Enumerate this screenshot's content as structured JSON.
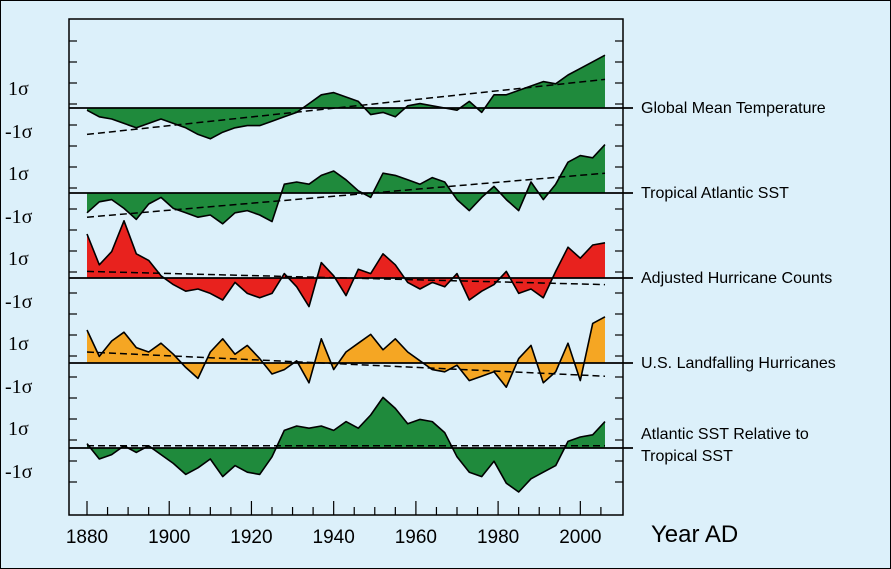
{
  "chart_data": {
    "type": "area",
    "xlabel": "Year AD",
    "xlim": [
      1880,
      2006
    ],
    "x_ticks": [
      1880,
      1900,
      1920,
      1940,
      1960,
      1980,
      2000
    ],
    "y_tick_labels": [
      "1σ",
      "-1σ"
    ],
    "grid": false,
    "colors": {
      "background": "#dcf0fa",
      "green": "#1f8a3c",
      "red": "#e8221e",
      "orange": "#f5a623"
    },
    "series": [
      {
        "name": "Global Mean Temperature",
        "label_lines": [
          "Global Mean Temperature"
        ],
        "fill": "green",
        "x": [
          1880,
          1883,
          1886,
          1889,
          1892,
          1895,
          1898,
          1901,
          1904,
          1907,
          1910,
          1913,
          1916,
          1919,
          1922,
          1925,
          1928,
          1931,
          1934,
          1937,
          1940,
          1943,
          1946,
          1949,
          1952,
          1955,
          1958,
          1961,
          1964,
          1967,
          1970,
          1973,
          1976,
          1979,
          1982,
          1985,
          1988,
          1991,
          1994,
          1997,
          2000,
          2003,
          2006
        ],
        "values": [
          -0.1,
          -0.4,
          -0.5,
          -0.7,
          -0.9,
          -0.7,
          -0.5,
          -0.7,
          -0.9,
          -1.2,
          -1.4,
          -1.1,
          -0.9,
          -0.8,
          -0.8,
          -0.6,
          -0.4,
          -0.2,
          0.2,
          0.6,
          0.7,
          0.5,
          0.3,
          -0.3,
          -0.2,
          -0.4,
          0.1,
          0.2,
          0.1,
          0.0,
          -0.1,
          0.3,
          -0.2,
          0.6,
          0.6,
          0.8,
          1.0,
          1.2,
          1.1,
          1.5,
          1.8,
          2.1,
          2.4
        ],
        "trend": [
          -1.2,
          1.3
        ]
      },
      {
        "name": "Tropical Atlantic SST",
        "label_lines": [
          "Tropical Atlantic SST"
        ],
        "fill": "green",
        "x": [
          1880,
          1883,
          1886,
          1889,
          1892,
          1895,
          1898,
          1901,
          1904,
          1907,
          1910,
          1913,
          1916,
          1919,
          1922,
          1925,
          1928,
          1931,
          1934,
          1937,
          1940,
          1943,
          1946,
          1949,
          1952,
          1955,
          1958,
          1961,
          1964,
          1967,
          1970,
          1973,
          1976,
          1979,
          1982,
          1985,
          1988,
          1991,
          1994,
          1997,
          2000,
          2003,
          2006
        ],
        "values": [
          -0.9,
          -0.4,
          -0.3,
          -0.7,
          -1.2,
          -0.5,
          -0.2,
          -0.7,
          -0.9,
          -1.1,
          -1.0,
          -1.4,
          -0.9,
          -0.8,
          -1.0,
          -1.3,
          0.4,
          0.5,
          0.4,
          0.8,
          1.0,
          0.6,
          0.1,
          -0.2,
          0.9,
          0.8,
          0.6,
          0.4,
          0.7,
          0.5,
          -0.3,
          -0.8,
          -0.2,
          0.3,
          -0.3,
          -0.8,
          0.5,
          -0.3,
          0.4,
          1.4,
          1.7,
          1.6,
          2.2
        ],
        "trend": [
          -1.1,
          0.9
        ]
      },
      {
        "name": "Adjusted Hurricane Counts",
        "label_lines": [
          "Adjusted Hurricane Counts"
        ],
        "fill": "red",
        "x": [
          1880,
          1883,
          1886,
          1889,
          1892,
          1895,
          1898,
          1901,
          1904,
          1907,
          1910,
          1913,
          1916,
          1919,
          1922,
          1925,
          1928,
          1931,
          1934,
          1937,
          1940,
          1943,
          1946,
          1949,
          1952,
          1955,
          1958,
          1961,
          1964,
          1967,
          1970,
          1973,
          1976,
          1979,
          1982,
          1985,
          1988,
          1991,
          1994,
          1997,
          2000,
          2003,
          2006
        ],
        "values": [
          2.0,
          0.6,
          1.2,
          2.6,
          1.1,
          0.8,
          0.1,
          -0.3,
          -0.6,
          -0.5,
          -0.7,
          -1.0,
          -0.2,
          -0.7,
          -0.9,
          -0.7,
          0.2,
          -0.4,
          -1.3,
          0.7,
          0.1,
          -0.8,
          0.4,
          0.2,
          1.1,
          0.6,
          -0.2,
          -0.5,
          -0.2,
          -0.4,
          0.2,
          -1.0,
          -0.6,
          -0.3,
          0.3,
          -0.7,
          -0.5,
          -0.9,
          0.3,
          1.4,
          0.9,
          1.5,
          1.6
        ],
        "trend": [
          0.3,
          -0.3
        ]
      },
      {
        "name": "U.S. Landfalling Hurricanes",
        "label_lines": [
          "U.S. Landfalling Hurricanes"
        ],
        "fill": "orange",
        "x": [
          1880,
          1883,
          1886,
          1889,
          1892,
          1895,
          1898,
          1901,
          1904,
          1907,
          1910,
          1913,
          1916,
          1919,
          1922,
          1925,
          1928,
          1931,
          1934,
          1937,
          1940,
          1943,
          1946,
          1949,
          1952,
          1955,
          1958,
          1961,
          1964,
          1967,
          1970,
          1973,
          1976,
          1979,
          1982,
          1985,
          1988,
          1991,
          1994,
          1997,
          2000,
          2003,
          2006
        ],
        "values": [
          1.5,
          0.3,
          1.0,
          1.4,
          0.7,
          0.5,
          0.9,
          0.4,
          -0.2,
          -0.7,
          0.5,
          1.1,
          0.4,
          0.8,
          0.2,
          -0.5,
          -0.3,
          0.1,
          -0.9,
          1.1,
          -0.3,
          0.5,
          0.9,
          1.3,
          0.6,
          1.1,
          0.5,
          0.1,
          -0.3,
          -0.4,
          -0.1,
          -0.8,
          -0.6,
          -0.4,
          -1.1,
          0.2,
          0.8,
          -0.9,
          -0.4,
          0.9,
          -0.8,
          1.8,
          2.1
        ],
        "trend": [
          0.5,
          -0.6
        ]
      },
      {
        "name": "Atlantic SST Relative to Tropical SST",
        "label_lines": [
          "Atlantic SST Relative to",
          "Tropical SST"
        ],
        "fill": "green",
        "x": [
          1880,
          1883,
          1886,
          1889,
          1892,
          1895,
          1898,
          1901,
          1904,
          1907,
          1910,
          1913,
          1916,
          1919,
          1922,
          1925,
          1928,
          1931,
          1934,
          1937,
          1940,
          1943,
          1946,
          1949,
          1952,
          1955,
          1958,
          1961,
          1964,
          1967,
          1970,
          1973,
          1976,
          1979,
          1982,
          1985,
          1988,
          1991,
          1994,
          1997,
          2000,
          2003,
          2006
        ],
        "values": [
          0.2,
          -0.5,
          -0.3,
          0.1,
          -0.2,
          0.1,
          -0.3,
          -0.7,
          -1.2,
          -0.9,
          -0.5,
          -1.3,
          -0.8,
          -1.1,
          -1.2,
          -0.4,
          0.8,
          1.0,
          0.9,
          1.0,
          0.8,
          1.2,
          0.9,
          1.5,
          2.3,
          1.8,
          1.1,
          1.3,
          1.2,
          0.7,
          -0.4,
          -1.1,
          -1.3,
          -0.6,
          -1.6,
          -2.0,
          -1.4,
          -1.1,
          -0.8,
          0.3,
          0.5,
          0.6,
          1.2
        ],
        "trend": [
          0.1,
          0.1
        ]
      }
    ]
  }
}
